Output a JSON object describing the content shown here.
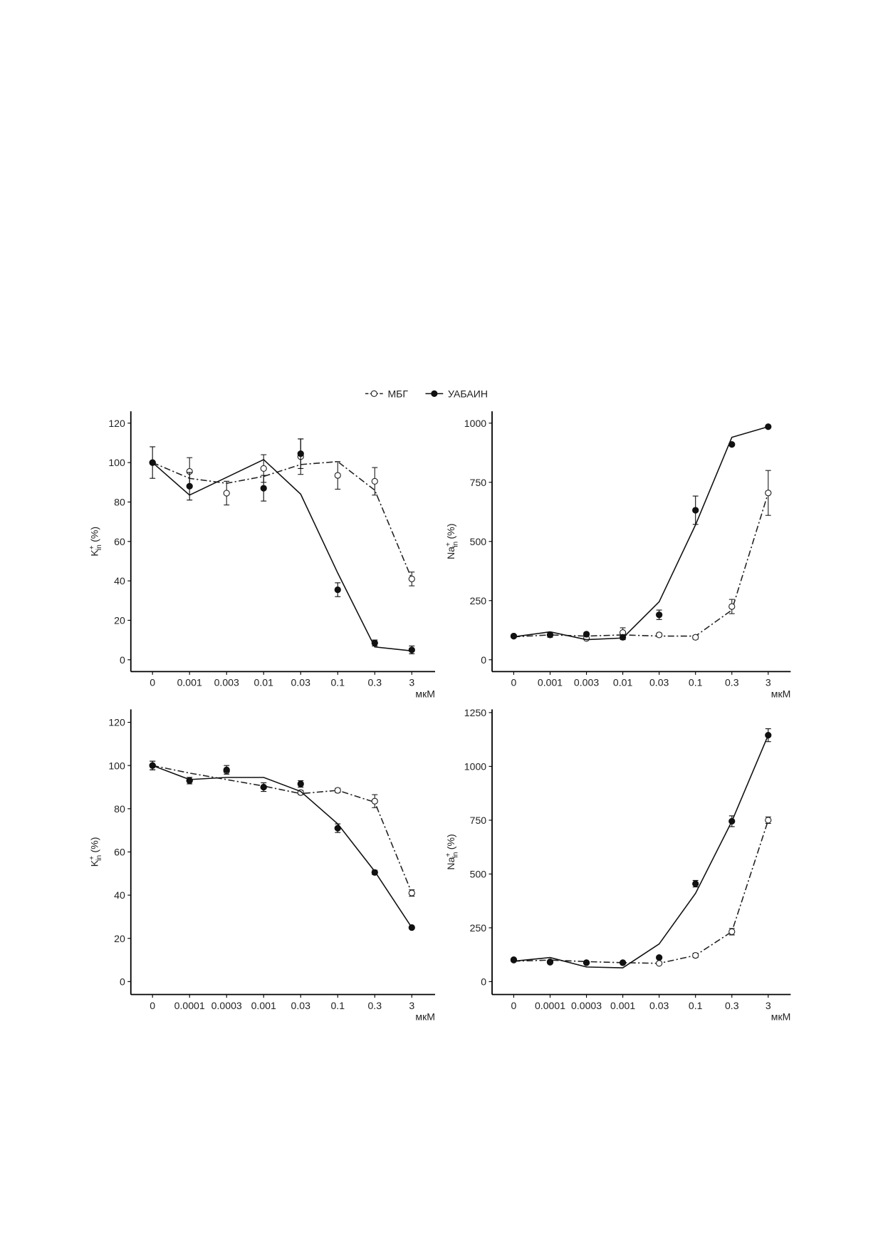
{
  "chart_data": [
    {
      "type": "line",
      "xlabel": "мкМ",
      "ylabel": {
        "base": "K",
        "sup": "+",
        "sub": "in",
        "unit": "(%)"
      },
      "categories": [
        "0",
        "0.001",
        "0.003",
        "0.01",
        "0.03",
        "0.1",
        "0.3",
        "3"
      ],
      "ylim": [
        -6,
        126
      ],
      "yticks": [
        0,
        20,
        40,
        60,
        80,
        100,
        120
      ],
      "series": [
        {
          "name": "МБГ",
          "color": "#222222",
          "style": "dashdot",
          "marker": "open",
          "values": [
            100,
            95.5,
            84.5,
            97,
            103,
            93.5,
            90.5,
            41
          ],
          "errors": [
            null,
            7,
            6,
            7,
            9,
            7,
            7,
            3.5
          ],
          "fit": [
            100,
            92,
            89.5,
            93,
            99,
            100.5,
            86,
            41
          ]
        },
        {
          "name": "УАБАИН",
          "color": "#111111",
          "style": "solid",
          "marker": "filled",
          "values": [
            100,
            88,
            null,
            87,
            104.5,
            35.5,
            8.5,
            5
          ],
          "errors": [
            8,
            7,
            null,
            6.5,
            7.5,
            3.5,
            1.5,
            2
          ],
          "fit": [
            100,
            83.5,
            92.5,
            101.5,
            84,
            44,
            6.5,
            4.5
          ]
        }
      ]
    },
    {
      "type": "line",
      "xlabel": "мкМ",
      "ylabel": {
        "base": "Na",
        "sup": "+",
        "sub": "in",
        "unit": "(%)"
      },
      "categories": [
        "0",
        "0.001",
        "0.003",
        "0.01",
        "0.03",
        "0.1",
        "0.3",
        "3"
      ],
      "ylim": [
        -50,
        1050
      ],
      "yticks": [
        0,
        250,
        500,
        750,
        1000
      ],
      "series": [
        {
          "color": "#222222",
          "style": "dashdot",
          "marker": "open",
          "values": [
            100,
            105,
            90,
            115,
            105,
            95,
            225,
            705
          ],
          "errors": [
            null,
            null,
            5,
            20,
            8,
            8,
            30,
            95
          ],
          "fit": [
            97,
            105,
            100,
            105,
            100,
            100,
            210,
            705
          ]
        },
        {
          "color": "#111111",
          "style": "solid",
          "marker": "filled",
          "values": [
            100,
            105,
            108,
            95,
            190,
            632,
            910,
            985
          ],
          "errors": [
            5,
            10,
            8,
            10,
            20,
            60,
            null,
            null
          ],
          "fit": [
            97,
            118,
            85,
            92,
            245,
            570,
            940,
            985
          ]
        }
      ]
    },
    {
      "type": "line",
      "xlabel": "мкМ",
      "ylabel": {
        "base": "K",
        "sup": "+",
        "sub": "in",
        "unit": "(%)"
      },
      "categories": [
        "0",
        "0.0001",
        "0.0003",
        "0.001",
        "0.03",
        "0.1",
        "0.3",
        "3"
      ],
      "ylim": [
        -6,
        126
      ],
      "yticks": [
        0,
        20,
        40,
        60,
        80,
        100,
        120
      ],
      "series": [
        {
          "color": "#222222",
          "style": "dashdot",
          "marker": "open",
          "values": [
            100,
            93,
            97.5,
            90,
            87.5,
            88.5,
            83.5,
            41
          ],
          "errors": [
            2,
            null,
            null,
            null,
            1,
            1,
            3,
            1.5
          ],
          "fit": [
            100,
            96.5,
            93.5,
            90.5,
            87,
            88.5,
            83,
            41
          ]
        },
        {
          "color": "#111111",
          "style": "solid",
          "marker": "filled",
          "values": [
            100,
            93,
            98,
            90,
            91.5,
            71,
            50.5,
            25
          ],
          "errors": [
            2,
            1.5,
            2,
            2,
            1.5,
            2,
            1,
            0.5
          ],
          "fit": [
            100,
            93.5,
            94.5,
            94.5,
            88,
            73,
            51,
            25
          ]
        }
      ]
    },
    {
      "type": "line",
      "xlabel": "мкМ",
      "ylabel": {
        "base": "Na",
        "sup": "+",
        "sub": "in",
        "unit": "(%)"
      },
      "categories": [
        "0",
        "0.0001",
        "0.0003",
        "0.001",
        "0.03",
        "0.1",
        "0.3",
        "3"
      ],
      "ylim": [
        -60,
        1265
      ],
      "yticks": [
        0,
        250,
        500,
        750,
        1000,
        1250
      ],
      "series": [
        {
          "color": "#222222",
          "style": "dashdot",
          "marker": "open",
          "values": [
            100,
            90,
            88,
            88,
            85,
            122,
            232,
            750
          ],
          "errors": [
            null,
            null,
            null,
            null,
            5,
            10,
            15,
            15
          ],
          "fit": [
            95,
            100,
            93,
            88,
            85,
            122,
            232,
            750
          ]
        },
        {
          "color": "#111111",
          "style": "solid",
          "marker": "filled",
          "values": [
            102,
            92,
            88,
            88,
            112,
            455,
            745,
            1145
          ],
          "errors": [
            5,
            null,
            null,
            null,
            null,
            15,
            25,
            30
          ],
          "fit": [
            95,
            112,
            68,
            64,
            175,
            410,
            745,
            1145
          ]
        }
      ]
    }
  ]
}
